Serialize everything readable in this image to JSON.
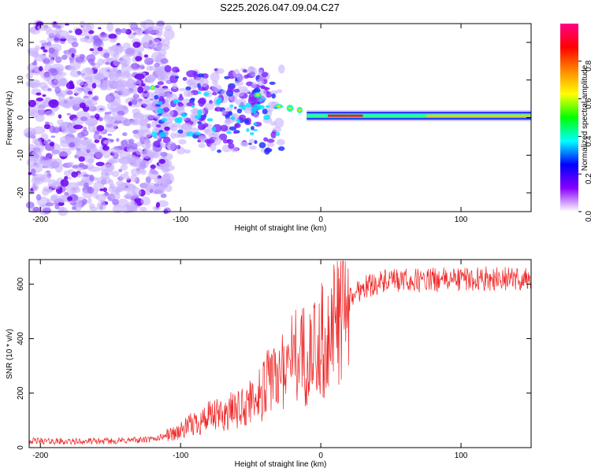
{
  "title": "S225.2026.047.09.04.C27",
  "chart_data": [
    {
      "type": "heatmap",
      "xlabel": "Height of straight line (km)",
      "ylabel": "Frequency (Hz)",
      "xlim": [
        -208,
        150
      ],
      "ylim": [
        -25,
        25
      ],
      "xticks": [
        -200,
        -100,
        0,
        100
      ],
      "yticks": [
        20,
        10,
        0,
        -10,
        -20
      ],
      "colorbar": {
        "label": "Normalized spectral amplitude",
        "range": [
          0,
          1
        ],
        "ticks": [
          0.0,
          0.2,
          0.4,
          0.6,
          0.8
        ],
        "colors": [
          "#ffffff",
          "#8800ff",
          "#0000ff",
          "#00ffff",
          "#00ff00",
          "#ffff00",
          "#ff8800",
          "#ff0000",
          "#ff0088"
        ]
      },
      "description_points": {
        "tone_center_hz": [
          [
            -120,
            8
          ],
          [
            -90,
            2
          ],
          [
            -60,
            0
          ],
          [
            -45,
            6
          ],
          [
            -30,
            3
          ],
          [
            -20,
            2
          ],
          [
            -5,
            -0.5
          ],
          [
            0,
            1
          ],
          [
            150,
            0.5
          ]
        ],
        "noise_region_km": [
          -208,
          -110
        ]
      }
    },
    {
      "type": "line",
      "xlabel": "Height of straight line (km)",
      "ylabel": "SNR (10 * v/v)",
      "xlim": [
        -208,
        150
      ],
      "ylim": [
        0,
        690
      ],
      "xticks": [
        -200,
        -100,
        0,
        100
      ],
      "yticks": [
        0,
        200,
        400,
        600
      ],
      "series": [
        {
          "name": "SNR",
          "color": "#ee2222",
          "x": [
            -208,
            -180,
            -150,
            -120,
            -110,
            -100,
            -90,
            -80,
            -70,
            -60,
            -50,
            -40,
            -35,
            -30,
            -25,
            -20,
            -15,
            -10,
            -5,
            0,
            5,
            10,
            15,
            20,
            25,
            30,
            40,
            50,
            60,
            80,
            100,
            120,
            150
          ],
          "values": [
            25,
            22,
            24,
            30,
            45,
            60,
            90,
            110,
            120,
            140,
            170,
            220,
            250,
            280,
            300,
            330,
            360,
            330,
            350,
            390,
            420,
            460,
            500,
            540,
            570,
            590,
            605,
            610,
            612,
            615,
            618,
            620,
            618
          ]
        }
      ]
    }
  ]
}
